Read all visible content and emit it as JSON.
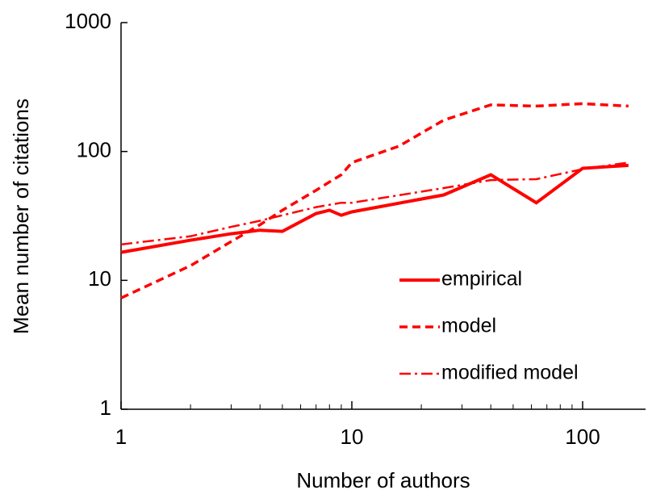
{
  "chart_data": {
    "type": "line",
    "xlabel": "Number of authors",
    "ylabel": "Mean number of citations",
    "xscale": "log",
    "yscale": "log",
    "xlim": [
      1,
      180
    ],
    "ylim": [
      1,
      1000
    ],
    "xticks": [
      1,
      10,
      100
    ],
    "yticks": [
      1,
      10,
      100,
      1000
    ],
    "xminorticks": [
      2,
      3,
      4,
      5,
      6,
      7,
      8,
      9,
      20,
      30,
      40,
      50,
      60,
      70,
      80,
      90
    ],
    "legend": "lower right",
    "series": [
      {
        "name": "empirical",
        "color": "#ff0000",
        "linestyle": "solid",
        "x": [
          1,
          2,
          3,
          4,
          5,
          7,
          8,
          9,
          10,
          25,
          40,
          63,
          100,
          158
        ],
        "values": [
          16.5,
          20.5,
          23,
          24.5,
          24,
          33,
          35,
          32,
          34,
          46,
          66,
          40,
          74,
          78
        ]
      },
      {
        "name": "model",
        "color": "#ff0000",
        "linestyle": "dashed",
        "x": [
          1,
          2,
          3,
          4,
          5,
          7,
          8,
          9,
          10,
          16,
          25,
          40,
          63,
          100,
          158
        ],
        "values": [
          7.3,
          13,
          20,
          27,
          35,
          50,
          58,
          66,
          82,
          110,
          175,
          230,
          225,
          235,
          225
        ]
      },
      {
        "name": "modified model",
        "color": "#ff0000",
        "linestyle": "dashdot",
        "x": [
          1,
          2,
          3,
          4,
          5,
          7,
          9,
          10,
          25,
          40,
          63,
          100,
          158
        ],
        "values": [
          19,
          22,
          26,
          29,
          32,
          37,
          40,
          40,
          52,
          60,
          61,
          73,
          82
        ]
      }
    ]
  }
}
